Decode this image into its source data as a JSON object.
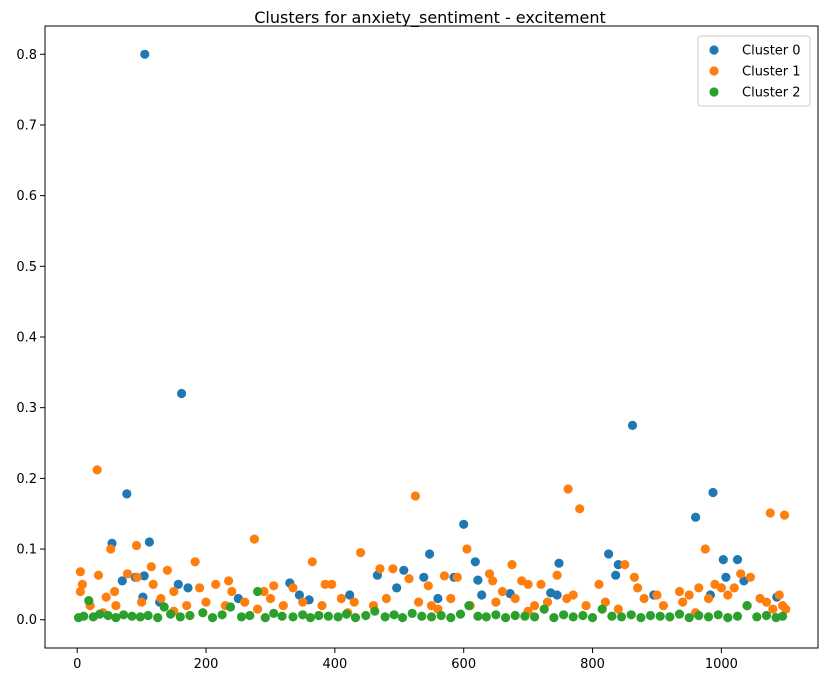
{
  "chart_data": {
    "type": "scatter",
    "title": "Clusters for anxiety_sentiment - excitement",
    "xlabel": "",
    "ylabel": "",
    "xlim": [
      -50,
      1150
    ],
    "ylim": [
      -0.04,
      0.84
    ],
    "x_ticks": [
      0,
      200,
      400,
      600,
      800,
      1000
    ],
    "y_ticks": [
      0.0,
      0.1,
      0.2,
      0.3,
      0.4,
      0.5,
      0.6,
      0.7,
      0.8
    ],
    "grid": false,
    "legend_position": "top-right",
    "series": [
      {
        "name": "Cluster 0",
        "color": "#1f77b4",
        "points": [
          [
            105,
            0.8
          ],
          [
            162,
            0.32
          ],
          [
            77,
            0.178
          ],
          [
            54,
            0.108
          ],
          [
            112,
            0.11
          ],
          [
            104,
            0.062
          ],
          [
            90,
            0.06
          ],
          [
            70,
            0.055
          ],
          [
            157,
            0.05
          ],
          [
            172,
            0.045
          ],
          [
            102,
            0.032
          ],
          [
            128,
            0.025
          ],
          [
            250,
            0.03
          ],
          [
            330,
            0.052
          ],
          [
            345,
            0.035
          ],
          [
            360,
            0.028
          ],
          [
            423,
            0.035
          ],
          [
            466,
            0.063
          ],
          [
            496,
            0.045
          ],
          [
            507,
            0.07
          ],
          [
            538,
            0.06
          ],
          [
            547,
            0.093
          ],
          [
            560,
            0.03
          ],
          [
            585,
            0.06
          ],
          [
            600,
            0.135
          ],
          [
            618,
            0.082
          ],
          [
            622,
            0.056
          ],
          [
            628,
            0.035
          ],
          [
            672,
            0.037
          ],
          [
            735,
            0.038
          ],
          [
            748,
            0.08
          ],
          [
            745,
            0.035
          ],
          [
            825,
            0.093
          ],
          [
            836,
            0.063
          ],
          [
            840,
            0.078
          ],
          [
            862,
            0.275
          ],
          [
            895,
            0.035
          ],
          [
            960,
            0.145
          ],
          [
            983,
            0.035
          ],
          [
            987,
            0.18
          ],
          [
            1003,
            0.085
          ],
          [
            1007,
            0.06
          ],
          [
            1025,
            0.085
          ],
          [
            1035,
            0.055
          ],
          [
            1086,
            0.032
          ]
        ]
      },
      {
        "name": "Cluster 1",
        "color": "#ff7f0e",
        "points": [
          [
            5,
            0.068
          ],
          [
            5,
            0.04
          ],
          [
            8,
            0.05
          ],
          [
            31,
            0.212
          ],
          [
            33,
            0.063
          ],
          [
            45,
            0.032
          ],
          [
            52,
            0.1
          ],
          [
            58,
            0.04
          ],
          [
            78,
            0.065
          ],
          [
            92,
            0.105
          ],
          [
            93,
            0.06
          ],
          [
            115,
            0.075
          ],
          [
            118,
            0.05
          ],
          [
            140,
            0.07
          ],
          [
            150,
            0.04
          ],
          [
            183,
            0.082
          ],
          [
            190,
            0.045
          ],
          [
            215,
            0.05
          ],
          [
            235,
            0.055
          ],
          [
            240,
            0.04
          ],
          [
            275,
            0.114
          ],
          [
            290,
            0.04
          ],
          [
            305,
            0.048
          ],
          [
            335,
            0.045
          ],
          [
            365,
            0.082
          ],
          [
            385,
            0.05
          ],
          [
            395,
            0.05
          ],
          [
            440,
            0.095
          ],
          [
            470,
            0.072
          ],
          [
            490,
            0.072
          ],
          [
            515,
            0.058
          ],
          [
            525,
            0.175
          ],
          [
            545,
            0.048
          ],
          [
            570,
            0.062
          ],
          [
            590,
            0.06
          ],
          [
            605,
            0.1
          ],
          [
            640,
            0.065
          ],
          [
            645,
            0.055
          ],
          [
            660,
            0.04
          ],
          [
            675,
            0.078
          ],
          [
            690,
            0.055
          ],
          [
            700,
            0.05
          ],
          [
            720,
            0.05
          ],
          [
            745,
            0.063
          ],
          [
            762,
            0.185
          ],
          [
            770,
            0.035
          ],
          [
            780,
            0.157
          ],
          [
            810,
            0.05
          ],
          [
            850,
            0.078
          ],
          [
            865,
            0.06
          ],
          [
            870,
            0.045
          ],
          [
            900,
            0.035
          ],
          [
            935,
            0.04
          ],
          [
            950,
            0.035
          ],
          [
            965,
            0.045
          ],
          [
            975,
            0.1
          ],
          [
            990,
            0.05
          ],
          [
            1000,
            0.045
          ],
          [
            1010,
            0.035
          ],
          [
            1020,
            0.045
          ],
          [
            1030,
            0.065
          ],
          [
            1045,
            0.06
          ],
          [
            1060,
            0.03
          ],
          [
            1076,
            0.151
          ],
          [
            1090,
            0.035
          ],
          [
            1098,
            0.148
          ],
          [
            1100,
            0.015
          ],
          [
            20,
            0.02
          ],
          [
            60,
            0.02
          ],
          [
            100,
            0.025
          ],
          [
            130,
            0.03
          ],
          [
            170,
            0.02
          ],
          [
            200,
            0.025
          ],
          [
            230,
            0.02
          ],
          [
            260,
            0.025
          ],
          [
            300,
            0.03
          ],
          [
            320,
            0.02
          ],
          [
            350,
            0.025
          ],
          [
            380,
            0.02
          ],
          [
            410,
            0.03
          ],
          [
            430,
            0.025
          ],
          [
            460,
            0.02
          ],
          [
            480,
            0.03
          ],
          [
            530,
            0.025
          ],
          [
            550,
            0.02
          ],
          [
            580,
            0.03
          ],
          [
            610,
            0.02
          ],
          [
            650,
            0.025
          ],
          [
            680,
            0.03
          ],
          [
            710,
            0.02
          ],
          [
            730,
            0.025
          ],
          [
            760,
            0.03
          ],
          [
            790,
            0.02
          ],
          [
            820,
            0.025
          ],
          [
            880,
            0.03
          ],
          [
            910,
            0.02
          ],
          [
            940,
            0.025
          ],
          [
            980,
            0.03
          ],
          [
            1040,
            0.02
          ],
          [
            1070,
            0.025
          ],
          [
            1095,
            0.02
          ],
          [
            40,
            0.01
          ],
          [
            150,
            0.012
          ],
          [
            280,
            0.015
          ],
          [
            420,
            0.01
          ],
          [
            560,
            0.015
          ],
          [
            700,
            0.012
          ],
          [
            840,
            0.015
          ],
          [
            960,
            0.01
          ],
          [
            1080,
            0.015
          ]
        ]
      },
      {
        "name": "Cluster 2",
        "color": "#2ca02c",
        "points": [
          [
            2,
            0.003
          ],
          [
            10,
            0.005
          ],
          [
            18,
            0.027
          ],
          [
            25,
            0.004
          ],
          [
            35,
            0.008
          ],
          [
            48,
            0.006
          ],
          [
            60,
            0.003
          ],
          [
            72,
            0.007
          ],
          [
            85,
            0.005
          ],
          [
            98,
            0.004
          ],
          [
            110,
            0.006
          ],
          [
            125,
            0.003
          ],
          [
            135,
            0.018
          ],
          [
            145,
            0.008
          ],
          [
            160,
            0.004
          ],
          [
            175,
            0.006
          ],
          [
            195,
            0.01
          ],
          [
            210,
            0.003
          ],
          [
            225,
            0.007
          ],
          [
            238,
            0.018
          ],
          [
            255,
            0.004
          ],
          [
            268,
            0.006
          ],
          [
            280,
            0.04
          ],
          [
            292,
            0.003
          ],
          [
            305,
            0.009
          ],
          [
            318,
            0.005
          ],
          [
            335,
            0.004
          ],
          [
            350,
            0.007
          ],
          [
            362,
            0.003
          ],
          [
            375,
            0.006
          ],
          [
            390,
            0.005
          ],
          [
            405,
            0.004
          ],
          [
            418,
            0.008
          ],
          [
            432,
            0.003
          ],
          [
            448,
            0.006
          ],
          [
            462,
            0.012
          ],
          [
            478,
            0.004
          ],
          [
            492,
            0.007
          ],
          [
            505,
            0.003
          ],
          [
            520,
            0.009
          ],
          [
            535,
            0.005
          ],
          [
            550,
            0.004
          ],
          [
            565,
            0.006
          ],
          [
            580,
            0.003
          ],
          [
            595,
            0.008
          ],
          [
            608,
            0.02
          ],
          [
            622,
            0.005
          ],
          [
            635,
            0.004
          ],
          [
            650,
            0.007
          ],
          [
            665,
            0.003
          ],
          [
            680,
            0.006
          ],
          [
            695,
            0.005
          ],
          [
            710,
            0.004
          ],
          [
            725,
            0.015
          ],
          [
            740,
            0.003
          ],
          [
            755,
            0.007
          ],
          [
            770,
            0.004
          ],
          [
            785,
            0.006
          ],
          [
            800,
            0.003
          ],
          [
            815,
            0.015
          ],
          [
            830,
            0.005
          ],
          [
            845,
            0.004
          ],
          [
            860,
            0.007
          ],
          [
            875,
            0.003
          ],
          [
            890,
            0.006
          ],
          [
            905,
            0.005
          ],
          [
            920,
            0.004
          ],
          [
            935,
            0.008
          ],
          [
            950,
            0.003
          ],
          [
            965,
            0.006
          ],
          [
            980,
            0.004
          ],
          [
            995,
            0.007
          ],
          [
            1010,
            0.003
          ],
          [
            1025,
            0.005
          ],
          [
            1040,
            0.02
          ],
          [
            1055,
            0.004
          ],
          [
            1070,
            0.006
          ],
          [
            1085,
            0.003
          ],
          [
            1095,
            0.005
          ]
        ]
      }
    ]
  }
}
